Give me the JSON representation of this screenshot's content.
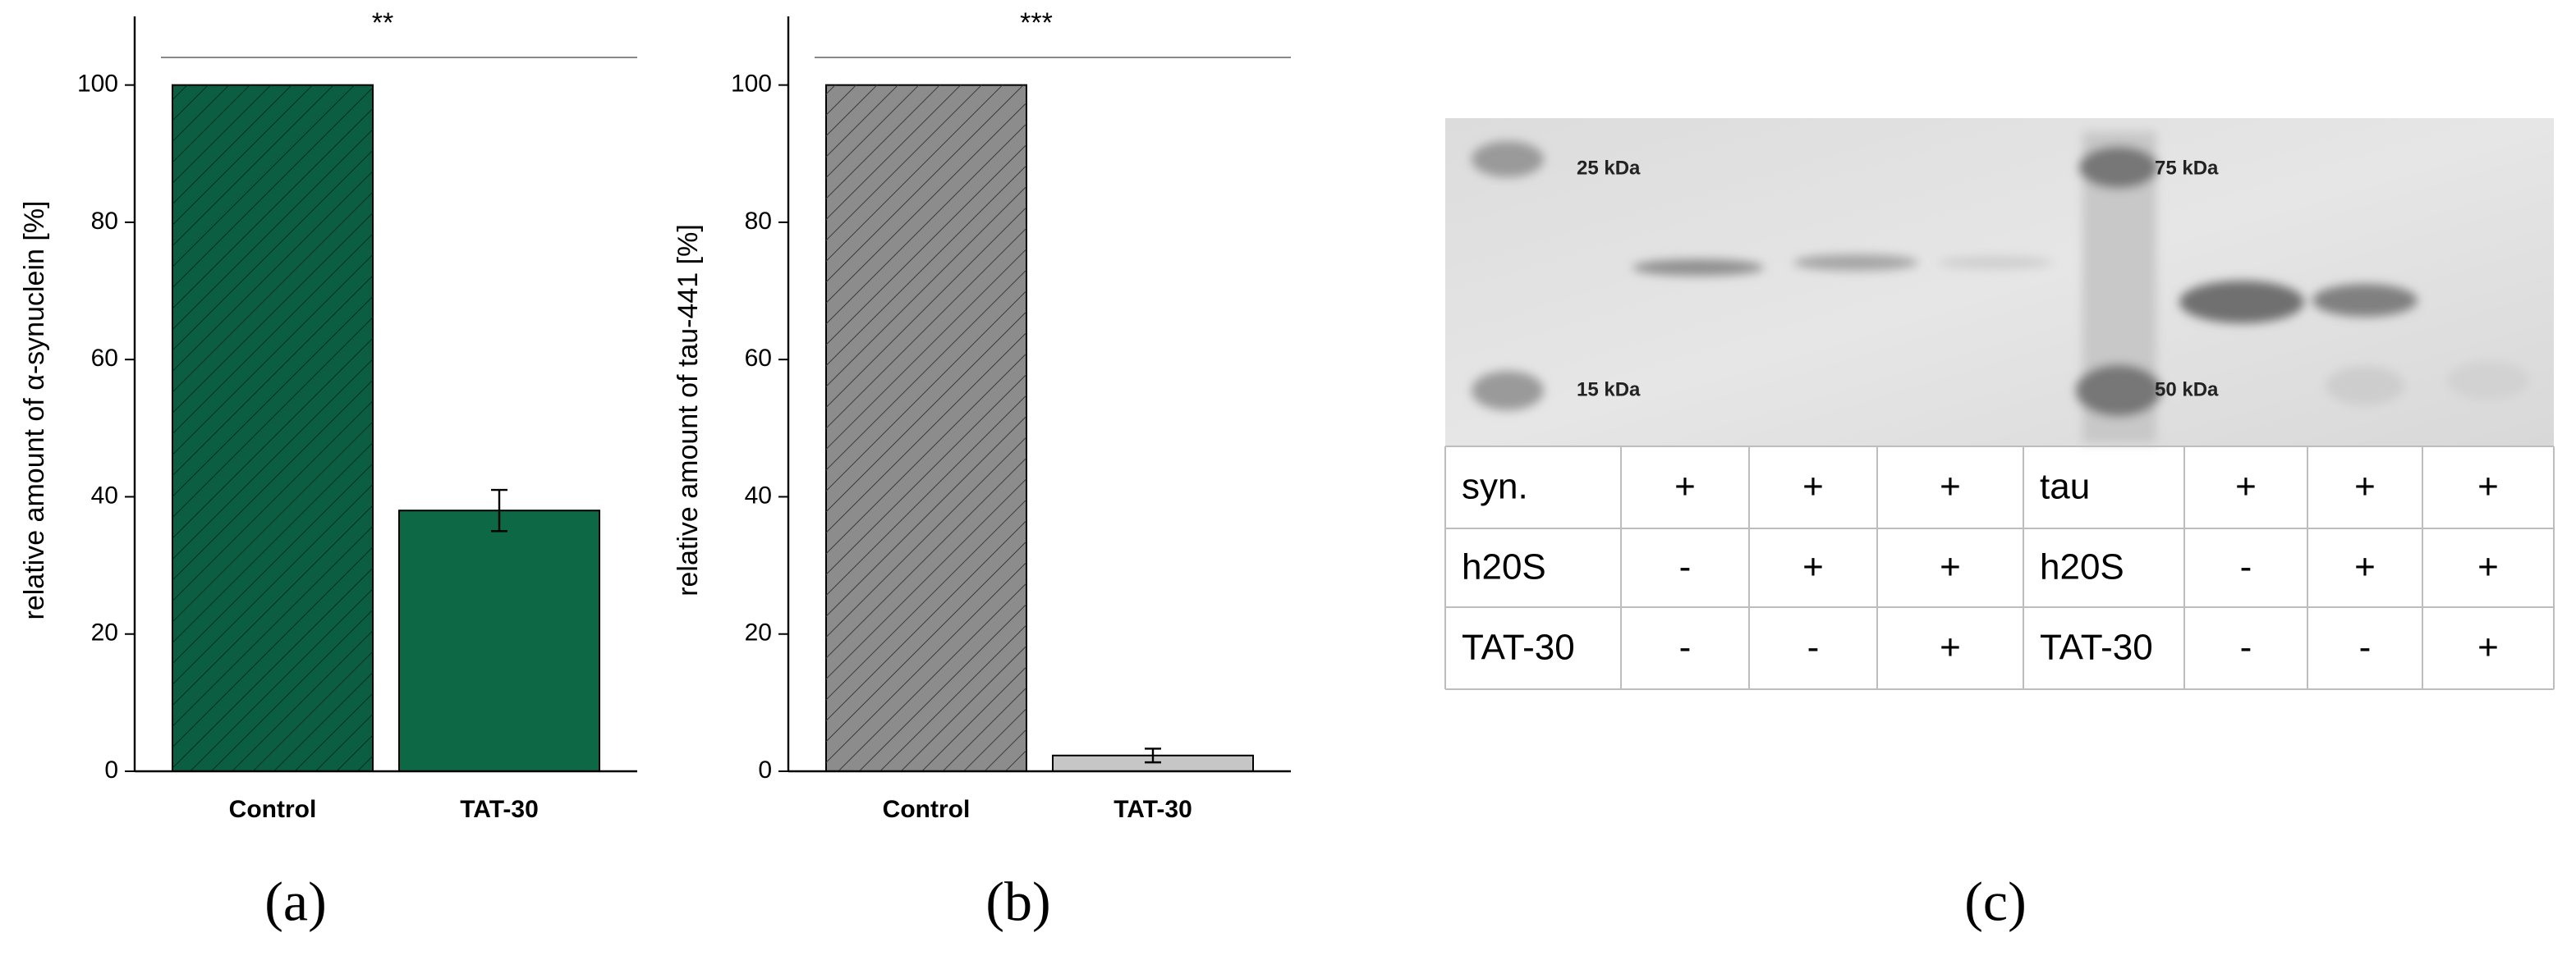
{
  "chart_data": [
    {
      "type": "bar",
      "ylabel": "relative amount of α-synuclein [%]",
      "categories": [
        "Control",
        "TAT-30"
      ],
      "values": [
        100,
        38
      ],
      "errors": [
        0,
        3
      ],
      "colors": [
        "#0b5e42",
        "#0d6845"
      ],
      "hatch": [
        true,
        false
      ],
      "significance": "**",
      "ylim": [
        0,
        110
      ],
      "yticks": [
        0,
        20,
        40,
        60,
        80,
        100
      ]
    },
    {
      "type": "bar",
      "ylabel": "relative amount of tau-441 [%]",
      "categories": [
        "Control",
        "TAT-30"
      ],
      "values": [
        100,
        2.3
      ],
      "errors": [
        0,
        1
      ],
      "colors": [
        "#8c8c8c",
        "#c6c6c6"
      ],
      "hatch": [
        true,
        false
      ],
      "significance": "***",
      "ylim": [
        0,
        110
      ],
      "yticks": [
        0,
        20,
        40,
        60,
        80,
        100
      ]
    }
  ],
  "gel": {
    "markers": [
      "25 kDa",
      "15 kDa",
      "75 kDa",
      "50 kDa"
    ]
  },
  "table": {
    "rows": [
      [
        "syn.",
        "+",
        "+",
        "+",
        "tau",
        "+",
        "+",
        "+"
      ],
      [
        "h20S",
        "-",
        "+",
        "+",
        "h20S",
        "-",
        "+",
        "+"
      ],
      [
        "TAT-30",
        "-",
        "-",
        "+",
        "TAT-30",
        "-",
        "-",
        "+"
      ]
    ]
  },
  "panel_labels": [
    "(a)",
    "(b)",
    "(c)"
  ]
}
